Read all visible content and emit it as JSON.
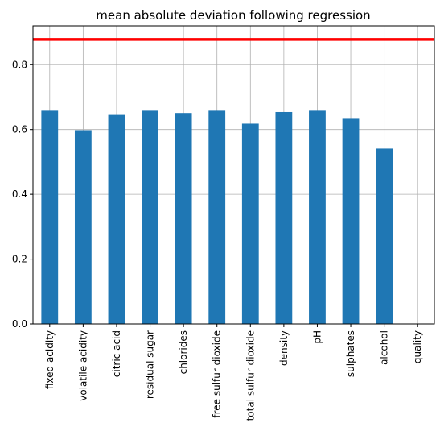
{
  "chart_data": {
    "type": "bar",
    "title": "mean absolute deviation following regression",
    "xlabel": "",
    "ylabel": "",
    "categories": [
      "fixed acidity",
      "volatile acidity",
      "citric acid",
      "residual sugar",
      "chlorides",
      "free sulfur dioxide",
      "total sulfur dioxide",
      "density",
      "pH",
      "sulphates",
      "alcohol",
      "quality"
    ],
    "values": [
      0.658,
      0.598,
      0.645,
      0.658,
      0.651,
      0.658,
      0.618,
      0.654,
      0.658,
      0.633,
      0.541,
      0.0
    ],
    "ylim": [
      0,
      0.92
    ],
    "yticks": [
      0.0,
      0.2,
      0.4,
      0.6,
      0.8
    ],
    "ytick_labels": [
      "0.0",
      "0.2",
      "0.4",
      "0.6",
      "0.8"
    ],
    "reference_line": {
      "value": 0.878,
      "color": "#ff0000"
    },
    "bar_color": "#1f77b4",
    "grid": true,
    "legend": "none"
  }
}
